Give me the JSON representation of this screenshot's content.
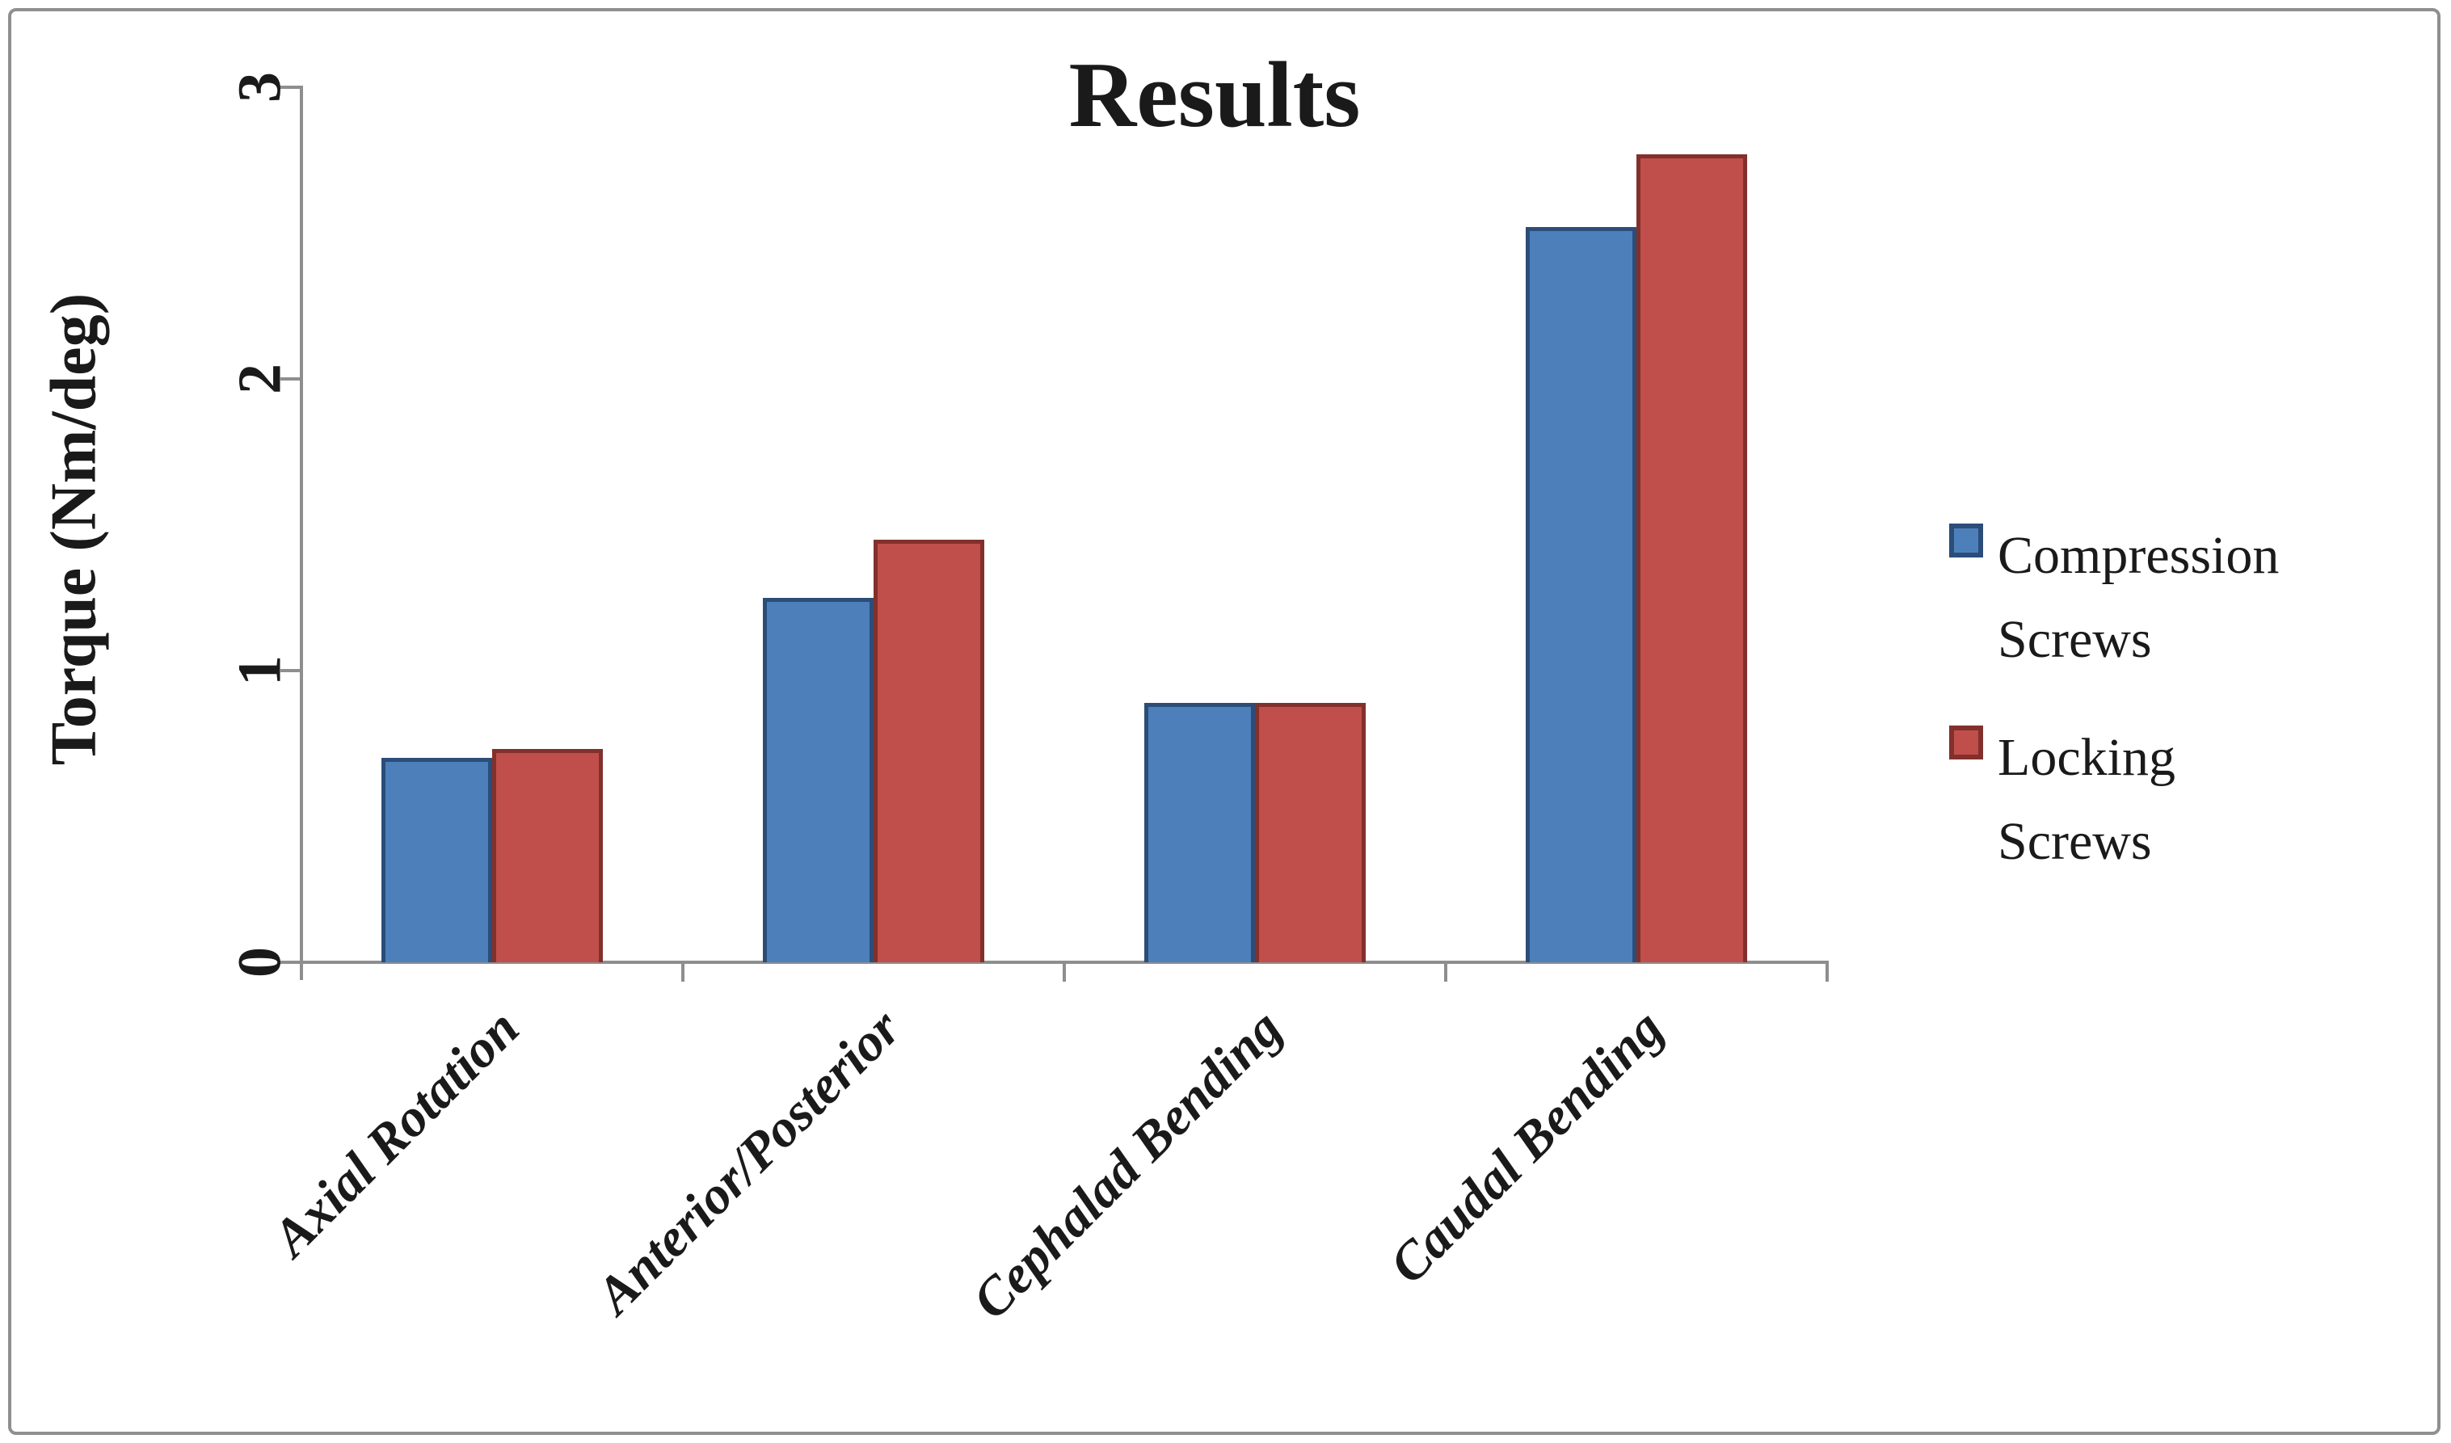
{
  "chart_data": {
    "type": "bar",
    "title": "Results",
    "ylabel": "Torque (Nm/deg)",
    "xlabel": "",
    "categories": [
      "Axial Rotation",
      "Anterior/Posterior",
      "Cephalad Bending",
      "Caudal Bending"
    ],
    "series": [
      {
        "name": "Compression Screws",
        "fill": "#4d80bb",
        "border": "#2b4d78",
        "values": [
          0.7,
          1.25,
          0.89,
          2.52
        ]
      },
      {
        "name": "Locking Screws",
        "fill": "#c04f4b",
        "border": "#82302c",
        "values": [
          0.73,
          1.45,
          0.89,
          2.77
        ]
      }
    ],
    "ylim": [
      0,
      3
    ],
    "yticks": [
      "0",
      "1",
      "2",
      "3"
    ],
    "grid": false,
    "legend_position": "right",
    "axis_color": "#8e8e8e",
    "text_color": "#1a1a1a"
  }
}
